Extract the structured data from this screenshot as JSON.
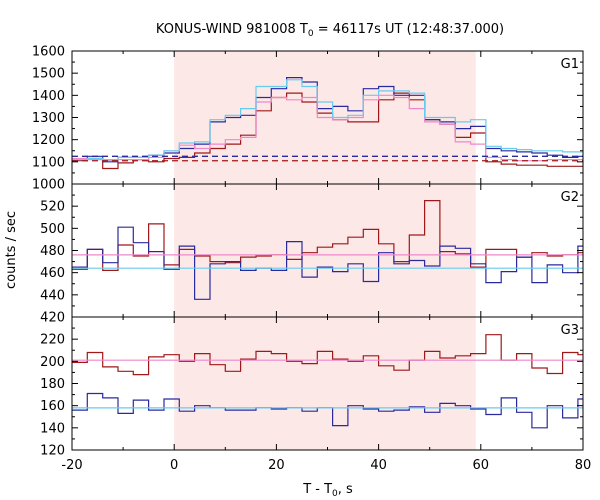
{
  "chart_data": {
    "type": "line",
    "title": {
      "main": "KONUS-WIND 981008 T",
      "sub": "0",
      "rest": " = 46117s UT (12:48:37.000)"
    },
    "xlabel": {
      "main": "T - T",
      "sub": "0",
      "rest": ", s"
    },
    "ylabel": "counts / sec",
    "xlim": [
      -20,
      80
    ],
    "x_ticks": [
      -20,
      0,
      20,
      40,
      60,
      80
    ],
    "x_tick_labels": [
      "-20",
      "0",
      "20",
      "40",
      "60",
      "80"
    ],
    "highlight_interval": [
      0,
      59
    ],
    "colors": {
      "red": "#a01818",
      "blue": "#2a2aa0",
      "pink": "#ee88cc",
      "lightblue": "#66ccee",
      "shade": "#fde8e8"
    },
    "panels": [
      {
        "label": "G1",
        "ylim": [
          1000,
          1600
        ],
        "y_ticks": [
          1000,
          1100,
          1200,
          1300,
          1400,
          1500,
          1600
        ],
        "y_tick_labels": [
          "1000",
          "1100",
          "1200",
          "1300",
          "1400",
          "1500",
          "1600"
        ],
        "edges": [
          -20,
          -17,
          -14,
          -11,
          -8,
          -5,
          -2,
          1,
          4,
          7,
          10,
          13,
          16,
          19,
          22,
          25,
          28,
          31,
          34,
          37,
          40,
          43,
          46,
          49,
          52,
          55,
          58,
          61,
          64,
          67,
          70,
          73,
          76,
          79,
          80
        ],
        "series": [
          {
            "color": "red",
            "values": [
              1105,
              1115,
              1070,
              1095,
              1110,
              1100,
              1115,
              1120,
              1140,
              1160,
              1180,
              1220,
              1330,
              1390,
              1410,
              1370,
              1320,
              1290,
              1280,
              1280,
              1380,
              1410,
              1380,
              1290,
              1270,
              1210,
              1230,
              1100,
              1090,
              1085,
              1085,
              1080,
              1080,
              1080
            ]
          },
          {
            "color": "blue",
            "values": [
              1110,
              1125,
              1100,
              1120,
              1120,
              1130,
              1140,
              1160,
              1180,
              1280,
              1300,
              1310,
              1390,
              1430,
              1480,
              1460,
              1340,
              1350,
              1330,
              1430,
              1440,
              1400,
              1400,
              1290,
              1280,
              1250,
              1260,
              1160,
              1150,
              1145,
              1140,
              1130,
              1120,
              1125
            ]
          },
          {
            "color": "pink",
            "values": [
              1115,
              1110,
              1105,
              1110,
              1110,
              1120,
              1150,
              1175,
              1160,
              1180,
              1200,
              1210,
              1370,
              1390,
              1380,
              1390,
              1300,
              1290,
              1300,
              1380,
              1400,
              1390,
              1340,
              1280,
              1270,
              1190,
              1180,
              1120,
              1110,
              1105,
              1105,
              1110,
              1110,
              1110
            ]
          },
          {
            "color": "lightblue",
            "values": [
              1110,
              1115,
              1110,
              1120,
              1120,
              1130,
              1150,
              1185,
              1190,
              1290,
              1310,
              1340,
              1440,
              1440,
              1470,
              1440,
              1370,
              1300,
              1310,
              1400,
              1420,
              1420,
              1410,
              1300,
              1300,
              1280,
              1290,
              1170,
              1160,
              1155,
              1150,
              1150,
              1145,
              1145
            ]
          }
        ],
        "background_levels": [
          {
            "color": "red",
            "y": 1105,
            "dashed": true
          },
          {
            "color": "blue",
            "y": 1125,
            "dashed": true
          }
        ]
      },
      {
        "label": "G2",
        "ylim": [
          420,
          540
        ],
        "y_ticks": [
          420,
          440,
          460,
          480,
          500,
          520
        ],
        "y_tick_labels": [
          "420",
          "440",
          "460",
          "480",
          "500",
          "520"
        ],
        "edges": [
          -20,
          -17,
          -14,
          -11,
          -8,
          -5,
          -2,
          1,
          4,
          7,
          10,
          13,
          16,
          19,
          22,
          25,
          28,
          31,
          34,
          37,
          40,
          43,
          46,
          49,
          52,
          55,
          58,
          61,
          64,
          67,
          70,
          73,
          76,
          79,
          80
        ],
        "series": [
          {
            "color": "red",
            "values": [
              463,
              481,
              462,
              485,
              475,
              504,
              467,
              481,
              475,
              470,
              469,
              474,
              475,
              476,
              472,
              478,
              483,
              486,
              492,
              499,
              486,
              470,
              494,
              525,
              479,
              477,
              465,
              481,
              481,
              474,
              478,
              475,
              476,
              478
            ]
          },
          {
            "color": "blue",
            "values": [
              465,
              481,
              469,
              501,
              487,
              479,
              463,
              484,
              436,
              468,
              470,
              462,
              464,
              462,
              488,
              456,
              465,
              461,
              468,
              452,
              478,
              468,
              471,
              466,
              484,
              482,
              468,
              451,
              461,
              474,
              451,
              467,
              460,
              484
            ]
          },
          {
            "color": "pink",
            "values": [
              476,
              476,
              476,
              476,
              476,
              476,
              476,
              476,
              476,
              476,
              476,
              476,
              476,
              476,
              476,
              476,
              476,
              476,
              476,
              476,
              476,
              476,
              476,
              476,
              476,
              476,
              476,
              476,
              476,
              476,
              476,
              476,
              476,
              476
            ]
          },
          {
            "color": "lightblue",
            "values": [
              464,
              464,
              464,
              464,
              464,
              464,
              464,
              464,
              464,
              464,
              464,
              464,
              464,
              464,
              464,
              464,
              464,
              464,
              464,
              464,
              464,
              464,
              464,
              464,
              464,
              464,
              464,
              464,
              464,
              464,
              464,
              464,
              464,
              464
            ]
          }
        ]
      },
      {
        "label": "G3",
        "ylim": [
          120,
          240
        ],
        "y_ticks": [
          120,
          140,
          160,
          180,
          200,
          220
        ],
        "y_tick_labels": [
          "120",
          "140",
          "160",
          "180",
          "200",
          "220"
        ],
        "edges": [
          -20,
          -17,
          -14,
          -11,
          -8,
          -5,
          -2,
          1,
          4,
          7,
          10,
          13,
          16,
          19,
          22,
          25,
          28,
          31,
          34,
          37,
          40,
          43,
          46,
          49,
          52,
          55,
          58,
          61,
          64,
          67,
          70,
          73,
          76,
          79,
          80
        ],
        "series": [
          {
            "color": "red",
            "values": [
              199,
              208,
              195,
              191,
              188,
              204,
              206,
              200,
              207,
              197,
              191,
              202,
              209,
              207,
              200,
              198,
              209,
              202,
              200,
              205,
              196,
              192,
              201,
              209,
              203,
              205,
              207,
              224,
              201,
              207,
              194,
              189,
              208,
              206
            ]
          },
          {
            "color": "blue",
            "values": [
              156,
              171,
              167,
              153,
              165,
              156,
              166,
              155,
              160,
              158,
              156,
              156,
              158,
              157,
              158,
              155,
              158,
              142,
              160,
              157,
              155,
              156,
              159,
              154,
              162,
              160,
              157,
              152,
              167,
              154,
              140,
              160,
              149,
              166
            ]
          },
          {
            "color": "pink",
            "values": [
              201,
              201,
              201,
              201,
              201,
              201,
              201,
              201,
              201,
              201,
              201,
              201,
              201,
              201,
              201,
              201,
              201,
              201,
              201,
              201,
              201,
              201,
              201,
              201,
              201,
              201,
              201,
              201,
              201,
              201,
              201,
              201,
              201,
              201
            ]
          },
          {
            "color": "lightblue",
            "values": [
              158,
              158,
              158,
              158,
              158,
              158,
              158,
              158,
              158,
              158,
              158,
              158,
              158,
              158,
              158,
              158,
              158,
              158,
              158,
              158,
              158,
              158,
              158,
              158,
              158,
              158,
              158,
              158,
              158,
              158,
              158,
              158,
              158,
              158
            ]
          }
        ]
      }
    ]
  }
}
